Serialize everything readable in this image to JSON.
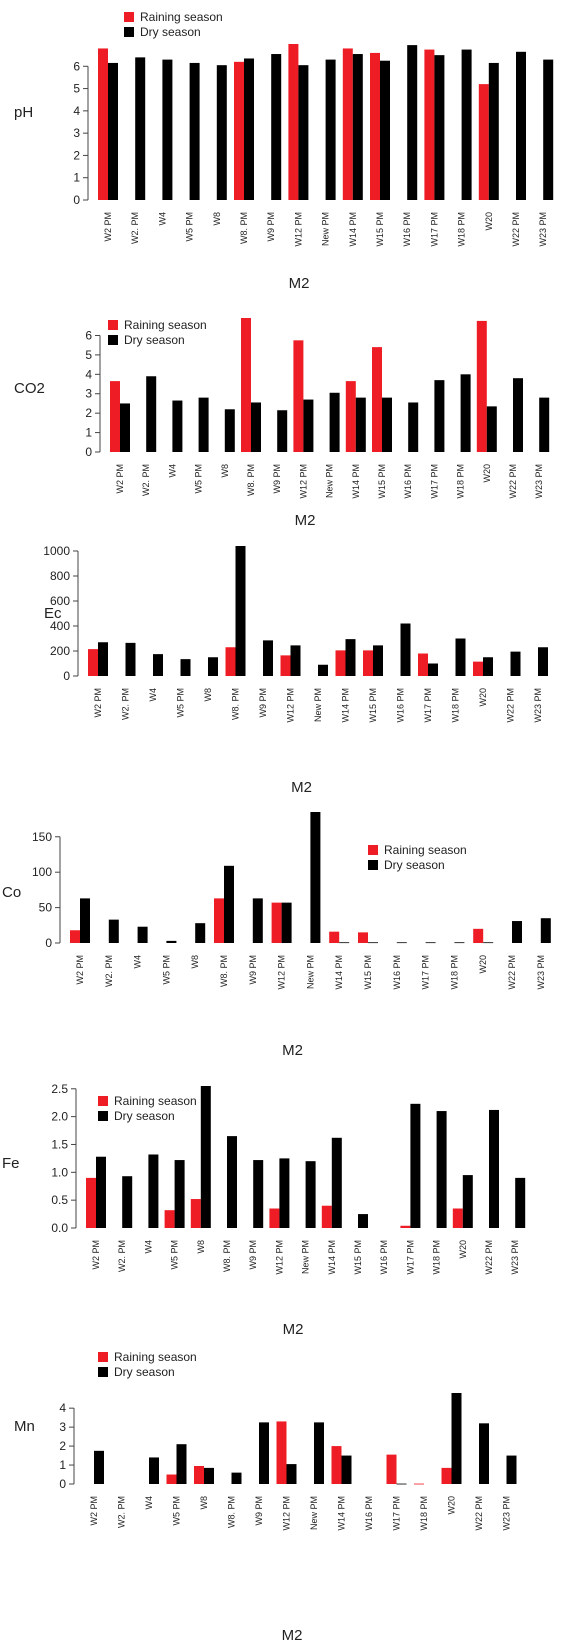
{
  "colors": {
    "rain": "#ee1c24",
    "dry": "#000000",
    "axis": "#444444",
    "text": "#222222"
  },
  "chart_data": [
    {
      "type": "bar",
      "ylabel": "pH",
      "xlabel": "M2",
      "ylim": [
        0,
        7
      ],
      "yticks": [
        0,
        1,
        2,
        3,
        4,
        5,
        6
      ],
      "legend_position": "top-left",
      "categories": [
        "W2 PM",
        "W2. PM",
        "W4",
        "W5 PM",
        "W8",
        "W8. PM",
        "W9 PM",
        "W12 PM",
        "New PM",
        "W14 PM",
        "W15 PM",
        "W16 PM",
        "W17 PM",
        "W18 PM",
        "W20",
        "W22 PM",
        "W23 PM"
      ],
      "series": [
        {
          "name": "Raining season",
          "color": "#ee1c24",
          "values": [
            6.8,
            null,
            null,
            null,
            null,
            6.2,
            null,
            7.0,
            null,
            6.8,
            6.6,
            null,
            6.75,
            null,
            5.2,
            null,
            null
          ]
        },
        {
          "name": "Dry season",
          "color": "#000000",
          "values": [
            6.15,
            6.4,
            6.3,
            6.15,
            6.05,
            6.35,
            6.55,
            6.05,
            6.3,
            6.55,
            6.25,
            6.95,
            6.5,
            6.75,
            6.15,
            6.65,
            6.3
          ]
        }
      ]
    },
    {
      "type": "bar",
      "ylabel": "CO2",
      "xlabel": "M2",
      "ylim": [
        0,
        6.9
      ],
      "yticks": [
        0,
        1,
        2,
        3,
        4,
        5,
        6
      ],
      "legend_position": "top-left",
      "categories": [
        "W2 PM",
        "W2. PM",
        "W4",
        "W5 PM",
        "W8",
        "W8. PM",
        "W9 PM",
        "W12 PM",
        "New PM",
        "W14 PM",
        "W15 PM",
        "W16 PM",
        "W17 PM",
        "W18 PM",
        "W20",
        "W22 PM",
        "W23 PM"
      ],
      "series": [
        {
          "name": "Raining season",
          "color": "#ee1c24",
          "values": [
            3.65,
            null,
            null,
            null,
            null,
            6.9,
            null,
            5.75,
            null,
            3.65,
            5.4,
            null,
            null,
            null,
            6.75,
            null,
            null
          ]
        },
        {
          "name": "Dry season",
          "color": "#000000",
          "values": [
            2.5,
            3.9,
            2.65,
            2.8,
            2.2,
            2.55,
            2.15,
            2.7,
            3.05,
            2.8,
            2.8,
            2.55,
            3.7,
            4.0,
            2.35,
            3.8,
            2.8
          ]
        }
      ]
    },
    {
      "type": "bar",
      "ylabel": "Ec",
      "xlabel": "M2",
      "ylim": [
        0,
        1040
      ],
      "yticks": [
        0,
        200,
        400,
        600,
        800,
        1000
      ],
      "legend_position": "none",
      "categories": [
        "W2 PM",
        "W2. PM",
        "W4",
        "W5 PM",
        "W8",
        "W8. PM",
        "W9 PM",
        "W12 PM",
        "New PM",
        "W14 PM",
        "W15 PM",
        "W16 PM",
        "W17 PM",
        "W18 PM",
        "W20",
        "W22 PM",
        "W23 PM"
      ],
      "series": [
        {
          "name": "",
          "color": "#ee1c24",
          "values": [
            215,
            null,
            null,
            null,
            null,
            230,
            null,
            165,
            null,
            205,
            205,
            null,
            180,
            null,
            115,
            null,
            null
          ]
        },
        {
          "name": "",
          "color": "#000000",
          "values": [
            270,
            265,
            175,
            135,
            150,
            1040,
            285,
            245,
            90,
            295,
            245,
            420,
            100,
            300,
            150,
            195,
            230
          ]
        }
      ]
    },
    {
      "type": "bar",
      "ylabel": "Co",
      "xlabel": "M2",
      "ylim": [
        0,
        185
      ],
      "yticks": [
        0,
        50,
        100,
        150
      ],
      "legend_position": "top-right",
      "categories": [
        "W2 PM",
        "W2. PM",
        "W4",
        "W5 PM",
        "W8",
        "W8. PM",
        "W9 PM",
        "W12 PM",
        "New PM",
        "W14 PM",
        "W15 PM",
        "W16 PM",
        "W17 PM",
        "W18 PM",
        "W20",
        "W22 PM",
        "W23 PM"
      ],
      "series": [
        {
          "name": "Raining season",
          "color": "#ee1c24",
          "values": [
            18,
            null,
            null,
            null,
            null,
            63,
            null,
            57,
            null,
            16,
            15,
            null,
            null,
            null,
            20,
            null,
            null
          ]
        },
        {
          "name": "Dry season",
          "color": "#000000",
          "values": [
            63,
            33,
            23,
            3,
            28,
            109,
            63,
            57,
            185,
            1,
            1,
            1,
            1,
            1,
            1,
            31,
            35
          ]
        }
      ]
    },
    {
      "type": "bar",
      "ylabel": "Fe",
      "xlabel": "M2",
      "ylim": [
        0,
        2.55
      ],
      "yticks": [
        0.0,
        0.5,
        1.0,
        1.5,
        2.0,
        2.5
      ],
      "legend_position": "top-left",
      "categories": [
        "W2 PM",
        "W2. PM",
        "W4",
        "W5 PM",
        "W8",
        "W8. PM",
        "W9 PM",
        "W12 PM",
        "New PM",
        "W14 PM",
        "W15 PM",
        "W16 PM",
        "W17 PM",
        "W18 PM",
        "W20",
        "W22 PM",
        "W23 PM"
      ],
      "series": [
        {
          "name": "Raining season",
          "color": "#ee1c24",
          "values": [
            0.9,
            null,
            null,
            0.32,
            0.52,
            null,
            null,
            0.35,
            null,
            0.4,
            null,
            null,
            0.04,
            null,
            0.35,
            null,
            null
          ]
        },
        {
          "name": "Dry season",
          "color": "#000000",
          "values": [
            1.28,
            0.93,
            1.32,
            1.22,
            2.55,
            1.65,
            1.22,
            1.25,
            1.2,
            1.62,
            0.25,
            null,
            2.23,
            2.1,
            0.95,
            2.12,
            0.9
          ]
        }
      ]
    },
    {
      "type": "bar",
      "ylabel": "Mn",
      "xlabel": "M2",
      "ylim": [
        0,
        4.8
      ],
      "yticks": [
        0,
        1,
        2,
        3,
        4
      ],
      "legend_position": "top-left",
      "categories": [
        "W2 PM",
        "W2. PM",
        "W4",
        "W5 PM",
        "W8",
        "W8. PM",
        "W9 PM",
        "W12 PM",
        "New PM",
        "W14 PM",
        "W16 PM",
        "W17 PM",
        "W18 PM",
        "W20",
        "W22 PM",
        "W23 PM"
      ],
      "series": [
        {
          "name": "Raining season",
          "color": "#ee1c24",
          "values": [
            null,
            null,
            null,
            0.5,
            0.95,
            null,
            null,
            3.3,
            null,
            2.0,
            null,
            1.55,
            0.02,
            0.85,
            null,
            null
          ]
        },
        {
          "name": "Dry season",
          "color": "#000000",
          "values": [
            1.75,
            null,
            1.4,
            2.1,
            0.85,
            0.6,
            3.25,
            1.05,
            3.25,
            1.5,
            null,
            0.02,
            null,
            4.8,
            3.2,
            1.5
          ]
        }
      ]
    }
  ]
}
